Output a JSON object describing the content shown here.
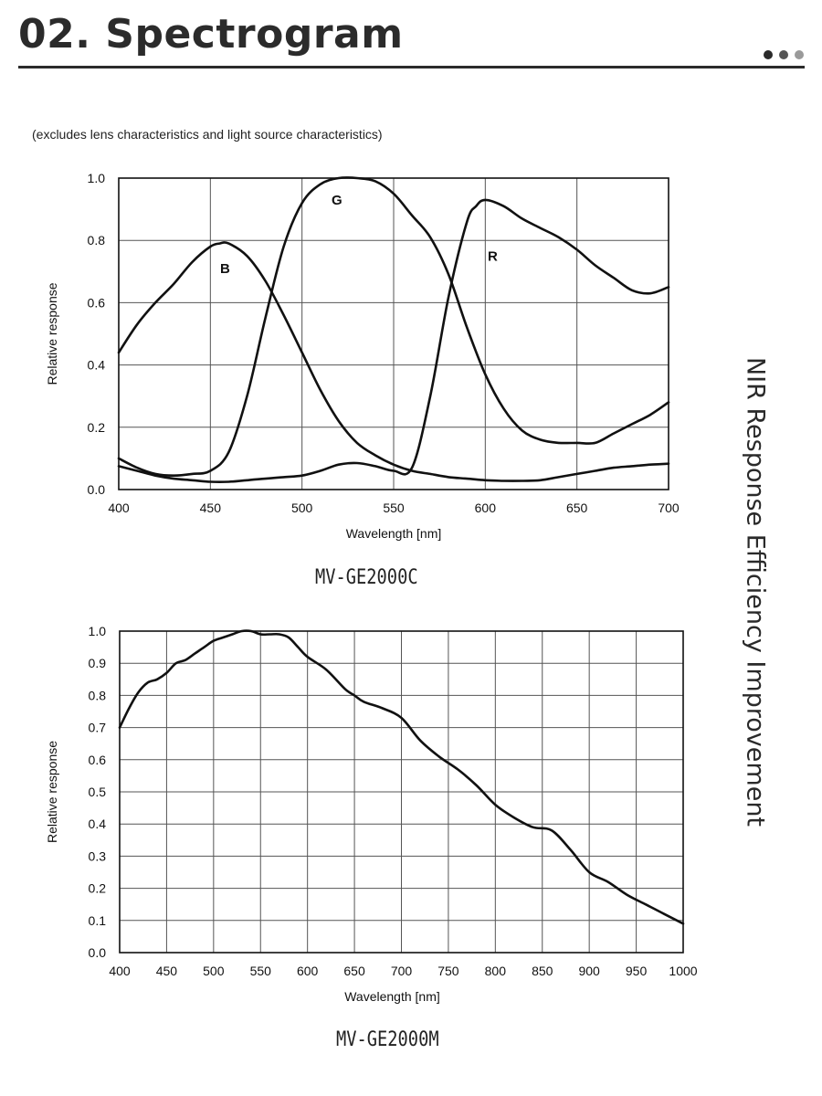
{
  "header": {
    "title": "02. Spectrogram",
    "dots": [
      "#2a2a2a",
      "#555555",
      "#9a9a9a"
    ]
  },
  "note": "(excludes lens characteristics and light source characteristics)",
  "side_text": "NIR Response Efficiency Improvement",
  "chart_data": [
    {
      "type": "line",
      "model": "MV-GE2000C",
      "xlabel": "Wavelength [nm]",
      "ylabel": "Relative response",
      "xlim": [
        400,
        700
      ],
      "ylim": [
        0,
        1.0
      ],
      "xticks": [
        400,
        450,
        500,
        550,
        600,
        650,
        700
      ],
      "yticks": [
        "0.0",
        "0.2",
        "0.4",
        "0.6",
        "0.8",
        "1.0"
      ],
      "yticks_values": [
        0,
        0.2,
        0.4,
        0.6,
        0.8,
        1.0
      ],
      "grid": true,
      "series": [
        {
          "name": "B",
          "label_at": [
            458,
            0.71
          ],
          "color": "#111111",
          "x": [
            400,
            410,
            420,
            430,
            440,
            450,
            455,
            460,
            470,
            480,
            490,
            500,
            510,
            520,
            530,
            540,
            550,
            560,
            570,
            580,
            590,
            600,
            610,
            620,
            630,
            640,
            650,
            660,
            670,
            680,
            690,
            700
          ],
          "y": [
            0.44,
            0.53,
            0.6,
            0.66,
            0.73,
            0.78,
            0.79,
            0.79,
            0.75,
            0.67,
            0.56,
            0.44,
            0.32,
            0.22,
            0.15,
            0.11,
            0.08,
            0.06,
            0.05,
            0.04,
            0.035,
            0.03,
            0.028,
            0.028,
            0.03,
            0.04,
            0.05,
            0.06,
            0.07,
            0.075,
            0.08,
            0.083
          ]
        },
        {
          "name": "G",
          "label_at": [
            519,
            0.93
          ],
          "color": "#111111",
          "x": [
            400,
            410,
            420,
            430,
            440,
            450,
            460,
            470,
            480,
            490,
            500,
            510,
            520,
            530,
            540,
            550,
            560,
            570,
            580,
            590,
            600,
            610,
            620,
            630,
            640,
            650,
            660,
            670,
            680,
            690,
            700
          ],
          "y": [
            0.1,
            0.07,
            0.05,
            0.045,
            0.05,
            0.06,
            0.12,
            0.3,
            0.55,
            0.78,
            0.92,
            0.98,
            1.0,
            1.0,
            0.99,
            0.95,
            0.88,
            0.81,
            0.69,
            0.52,
            0.37,
            0.26,
            0.19,
            0.16,
            0.15,
            0.15,
            0.15,
            0.18,
            0.21,
            0.24,
            0.28
          ]
        },
        {
          "name": "R",
          "label_at": [
            604,
            0.75
          ],
          "color": "#111111",
          "x": [
            400,
            410,
            420,
            430,
            440,
            450,
            460,
            470,
            480,
            490,
            500,
            510,
            520,
            530,
            540,
            550,
            560,
            570,
            580,
            590,
            595,
            600,
            610,
            620,
            630,
            640,
            650,
            660,
            670,
            680,
            690,
            700
          ],
          "y": [
            0.075,
            0.06,
            0.045,
            0.035,
            0.03,
            0.025,
            0.025,
            0.03,
            0.035,
            0.04,
            0.045,
            0.06,
            0.08,
            0.085,
            0.075,
            0.06,
            0.07,
            0.3,
            0.62,
            0.86,
            0.91,
            0.93,
            0.91,
            0.87,
            0.84,
            0.81,
            0.77,
            0.72,
            0.68,
            0.64,
            0.63,
            0.65
          ]
        }
      ]
    },
    {
      "type": "line",
      "model": "MV-GE2000M",
      "xlabel": "Wavelength [nm]",
      "ylabel": "Relative response",
      "xlim": [
        400,
        1000
      ],
      "ylim": [
        0,
        1.0
      ],
      "xticks": [
        400,
        450,
        500,
        550,
        600,
        650,
        700,
        750,
        800,
        850,
        900,
        950,
        1000
      ],
      "yticks": [
        "0.0",
        "0.1",
        "0.2",
        "0.3",
        "0.4",
        "0.5",
        "0.6",
        "0.7",
        "0.8",
        "0.9",
        "1.0"
      ],
      "yticks_values": [
        0,
        0.1,
        0.2,
        0.3,
        0.4,
        0.5,
        0.6,
        0.7,
        0.8,
        0.9,
        1.0
      ],
      "grid": true,
      "series": [
        {
          "color": "#111111",
          "x": [
            400,
            410,
            420,
            430,
            440,
            450,
            460,
            470,
            480,
            490,
            500,
            510,
            520,
            530,
            540,
            550,
            560,
            570,
            580,
            590,
            600,
            620,
            640,
            650,
            660,
            680,
            700,
            720,
            740,
            760,
            780,
            800,
            820,
            840,
            860,
            880,
            900,
            920,
            940,
            960,
            980,
            1000
          ],
          "y": [
            0.7,
            0.76,
            0.81,
            0.84,
            0.85,
            0.87,
            0.9,
            0.91,
            0.93,
            0.95,
            0.97,
            0.98,
            0.99,
            1.0,
            1.0,
            0.99,
            0.99,
            0.99,
            0.98,
            0.95,
            0.92,
            0.88,
            0.82,
            0.8,
            0.78,
            0.76,
            0.73,
            0.66,
            0.61,
            0.57,
            0.52,
            0.46,
            0.42,
            0.39,
            0.38,
            0.32,
            0.25,
            0.22,
            0.18,
            0.15,
            0.12,
            0.09
          ]
        }
      ]
    }
  ]
}
